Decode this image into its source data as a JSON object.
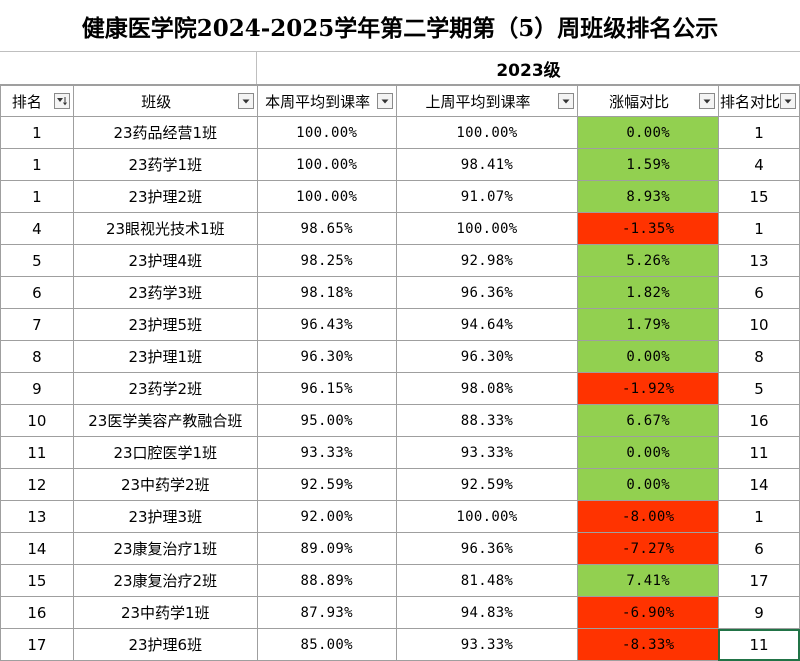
{
  "title": "健康医学院2024-2025学年第二学期第（5）周班级排名公示",
  "grade_label": "2023级",
  "headers": [
    "排名",
    "班级",
    "本周平均到课率",
    "上周平均到课率",
    "涨幅对比",
    "排名对比"
  ],
  "icons": {
    "filter": "filter-dropdown-icon",
    "sorted": "sort-descending-filter-icon"
  },
  "colors": {
    "increase": "#92d050",
    "decrease": "#ff3300",
    "grid": "#9f9f9f",
    "selection": "#217346"
  },
  "rows": [
    {
      "rank": "1",
      "class": "23药品经营1班",
      "this_week": "100.00%",
      "last_week": "100.00%",
      "change": "0.00%",
      "trend": "up",
      "rank_compare": "1"
    },
    {
      "rank": "1",
      "class": "23药学1班",
      "this_week": "100.00%",
      "last_week": "98.41%",
      "change": "1.59%",
      "trend": "up",
      "rank_compare": "4"
    },
    {
      "rank": "1",
      "class": "23护理2班",
      "this_week": "100.00%",
      "last_week": "91.07%",
      "change": "8.93%",
      "trend": "up",
      "rank_compare": "15"
    },
    {
      "rank": "4",
      "class": "23眼视光技术1班",
      "this_week": "98.65%",
      "last_week": "100.00%",
      "change": "-1.35%",
      "trend": "down",
      "rank_compare": "1"
    },
    {
      "rank": "5",
      "class": "23护理4班",
      "this_week": "98.25%",
      "last_week": "92.98%",
      "change": "5.26%",
      "trend": "up",
      "rank_compare": "13"
    },
    {
      "rank": "6",
      "class": "23药学3班",
      "this_week": "98.18%",
      "last_week": "96.36%",
      "change": "1.82%",
      "trend": "up",
      "rank_compare": "6"
    },
    {
      "rank": "7",
      "class": "23护理5班",
      "this_week": "96.43%",
      "last_week": "94.64%",
      "change": "1.79%",
      "trend": "up",
      "rank_compare": "10"
    },
    {
      "rank": "8",
      "class": "23护理1班",
      "this_week": "96.30%",
      "last_week": "96.30%",
      "change": "0.00%",
      "trend": "up",
      "rank_compare": "8"
    },
    {
      "rank": "9",
      "class": "23药学2班",
      "this_week": "96.15%",
      "last_week": "98.08%",
      "change": "-1.92%",
      "trend": "down",
      "rank_compare": "5"
    },
    {
      "rank": "10",
      "class": "23医学美容产教融合班",
      "this_week": "95.00%",
      "last_week": "88.33%",
      "change": "6.67%",
      "trend": "up",
      "rank_compare": "16"
    },
    {
      "rank": "11",
      "class": "23口腔医学1班",
      "this_week": "93.33%",
      "last_week": "93.33%",
      "change": "0.00%",
      "trend": "up",
      "rank_compare": "11"
    },
    {
      "rank": "12",
      "class": "23中药学2班",
      "this_week": "92.59%",
      "last_week": "92.59%",
      "change": "0.00%",
      "trend": "up",
      "rank_compare": "14"
    },
    {
      "rank": "13",
      "class": "23护理3班",
      "this_week": "92.00%",
      "last_week": "100.00%",
      "change": "-8.00%",
      "trend": "down",
      "rank_compare": "1"
    },
    {
      "rank": "14",
      "class": "23康复治疗1班",
      "this_week": "89.09%",
      "last_week": "96.36%",
      "change": "-7.27%",
      "trend": "down",
      "rank_compare": "6"
    },
    {
      "rank": "15",
      "class": "23康复治疗2班",
      "this_week": "88.89%",
      "last_week": "81.48%",
      "change": "7.41%",
      "trend": "up",
      "rank_compare": "17"
    },
    {
      "rank": "16",
      "class": "23中药学1班",
      "this_week": "87.93%",
      "last_week": "94.83%",
      "change": "-6.90%",
      "trend": "down",
      "rank_compare": "9"
    },
    {
      "rank": "17",
      "class": "23护理6班",
      "this_week": "85.00%",
      "last_week": "93.33%",
      "change": "-8.33%",
      "trend": "down",
      "rank_compare": "11"
    }
  ]
}
